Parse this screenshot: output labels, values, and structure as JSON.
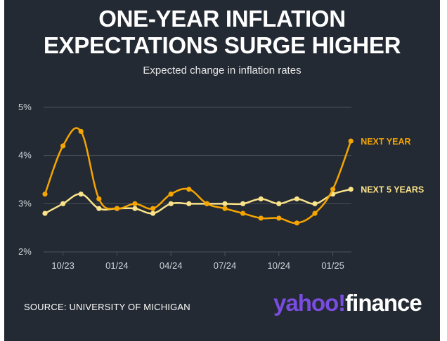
{
  "header": {
    "title_line1": "ONE-YEAR INFLATION",
    "title_line2": "EXPECTATIONS SURGE HIGHER",
    "subtitle": "Expected change in inflation rates"
  },
  "footer": {
    "source": "SOURCE: UNIVERSITY OF MICHIGAN",
    "brand_part1": "yahoo!",
    "brand_part2": "finance"
  },
  "colors": {
    "background": "#232a33",
    "next_year": "#f5a400",
    "next_5_years": "#fbe38a",
    "grid": "#4a525c",
    "tick_text": "#cfd3d8",
    "brand_purple": "#7b4ce1"
  },
  "chart_data": {
    "type": "line",
    "title": "ONE-YEAR INFLATION EXPECTATIONS SURGE HIGHER",
    "subtitle": "Expected change in inflation rates",
    "x": [
      "2023-09",
      "2023-10",
      "2023-11",
      "2023-12",
      "2024-01",
      "2024-02",
      "2024-03",
      "2024-04",
      "2024-05",
      "2024-06",
      "2024-07",
      "2024-08",
      "2024-09",
      "2024-10",
      "2024-11",
      "2024-12",
      "2025-01",
      "2025-02"
    ],
    "x_tick_labels": [
      "10/23",
      "01/24",
      "04/24",
      "07/24",
      "10/24",
      "01/25"
    ],
    "x_tick_positions": [
      "2023-10",
      "2024-01",
      "2024-04",
      "2024-07",
      "2024-10",
      "2025-01"
    ],
    "y_tick_labels": [
      "5%",
      "4%",
      "3%",
      "2%"
    ],
    "y_tick_values": [
      5,
      4,
      3,
      2
    ],
    "ylim": [
      2,
      5
    ],
    "grid": true,
    "series": [
      {
        "name": "NEXT YEAR",
        "key": "next_year",
        "values": [
          3.2,
          4.2,
          4.5,
          3.1,
          2.9,
          3.0,
          2.9,
          3.2,
          3.3,
          3.0,
          2.9,
          2.8,
          2.7,
          2.7,
          2.6,
          2.8,
          3.3,
          4.3
        ]
      },
      {
        "name": "NEXT 5 YEARS",
        "key": "next_5_years",
        "values": [
          2.8,
          3.0,
          3.2,
          2.9,
          2.9,
          2.9,
          2.8,
          3.0,
          3.0,
          3.0,
          3.0,
          3.0,
          3.1,
          3.0,
          3.1,
          3.0,
          3.2,
          3.3
        ]
      }
    ],
    "xlabel": "",
    "ylabel": "",
    "legend": "direct labels at line ends (right)"
  }
}
